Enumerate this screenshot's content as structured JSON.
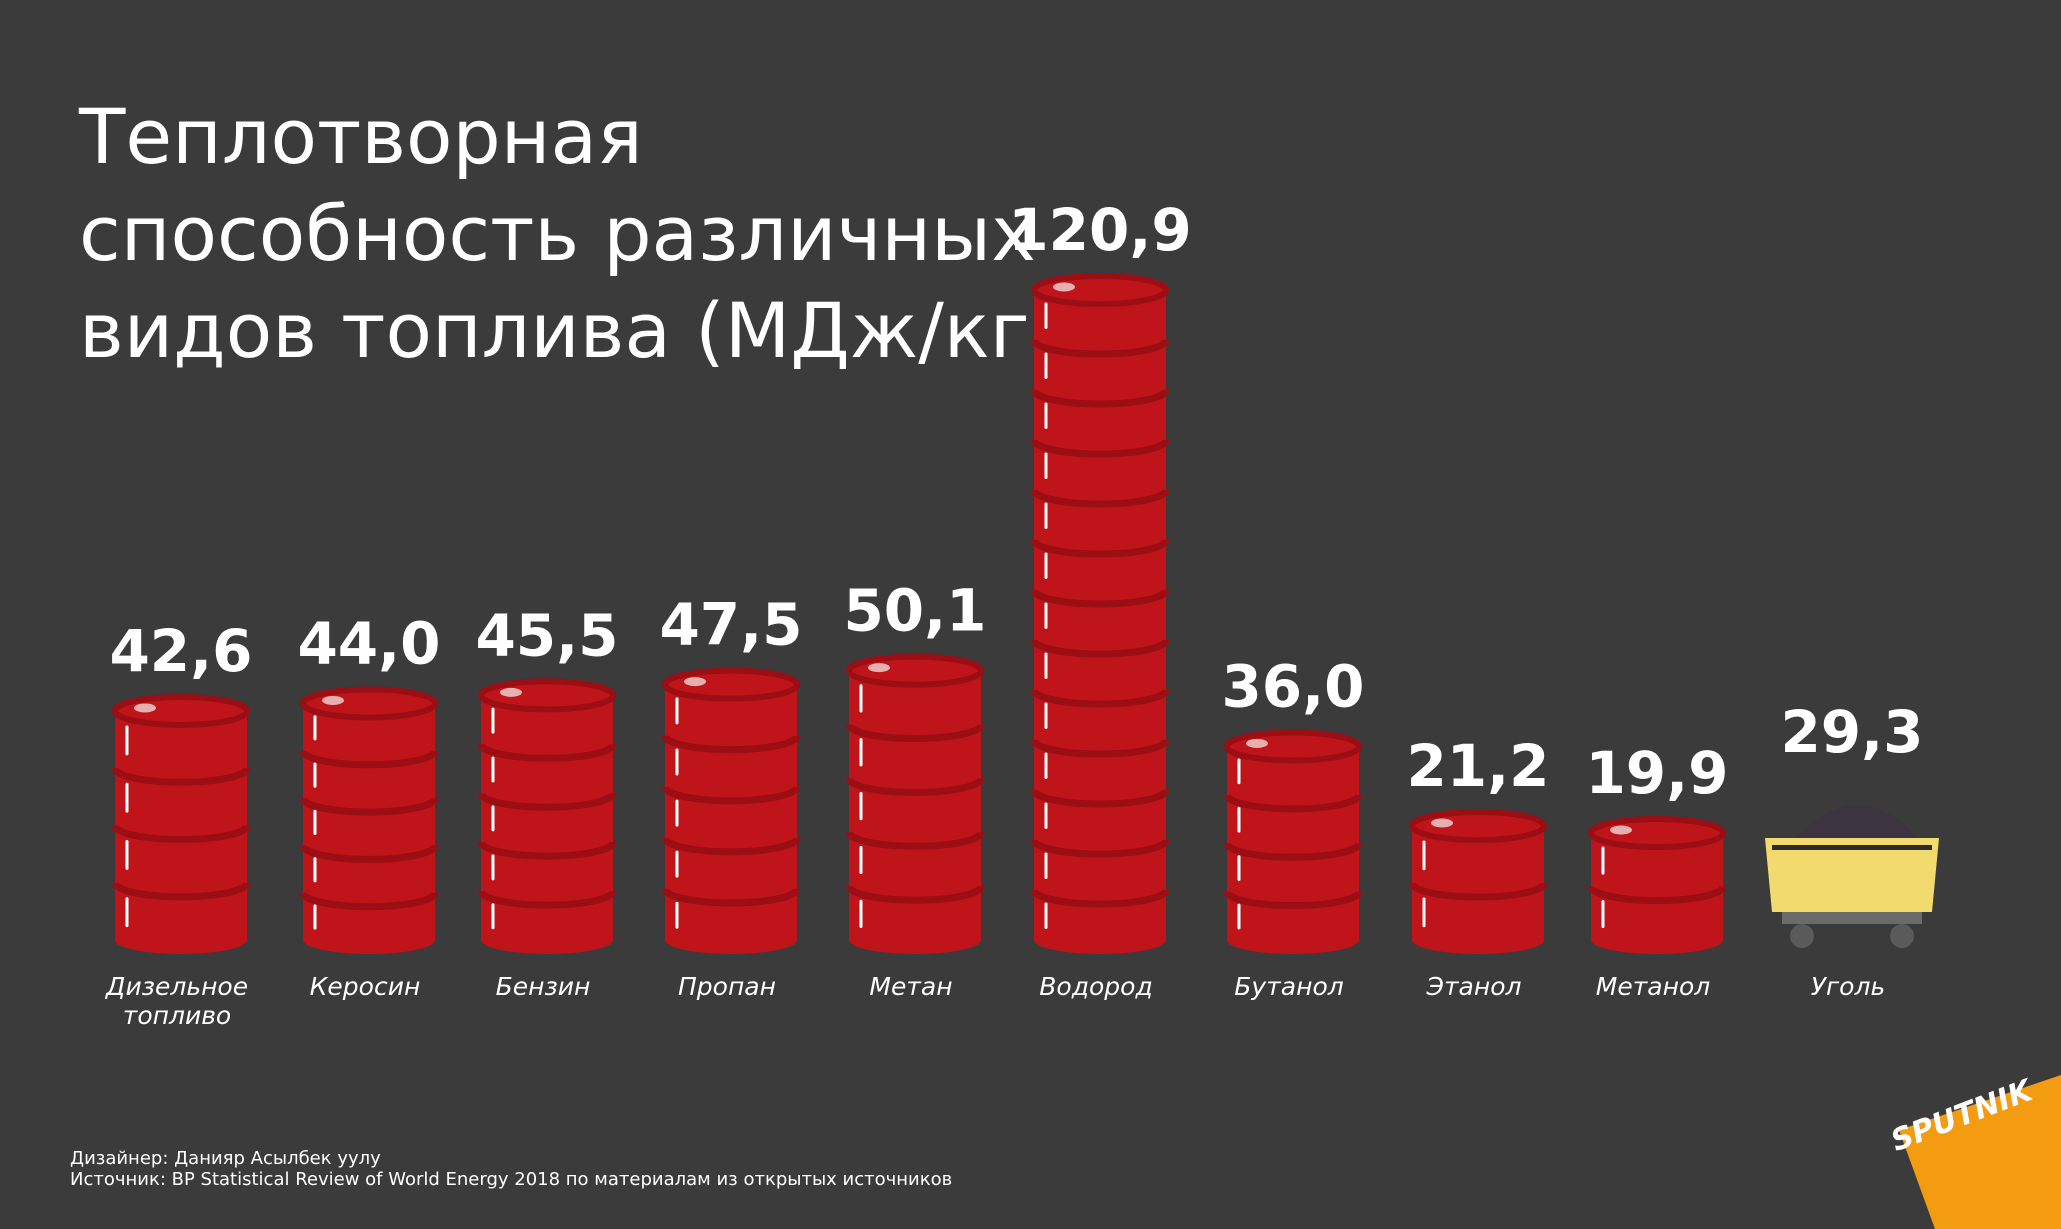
{
  "title_lines": [
    "Теплотворная",
    "способность различных",
    "видов топлива (МДж/кг)"
  ],
  "chart_data": {
    "type": "bar",
    "title": "Теплотворная способность различных видов топлива (МДж/кг)",
    "categories": [
      "Дизельное топливо",
      "Керосин",
      "Бензин",
      "Пропан",
      "Метан",
      "Водород",
      "Бутанол",
      "Этанол",
      "Метанол",
      "Уголь"
    ],
    "category_lines": [
      [
        "Дизельное",
        "топливо"
      ],
      [
        "Керосин"
      ],
      [
        "Бензин"
      ],
      [
        "Пропан"
      ],
      [
        "Метан"
      ],
      [
        "Водород"
      ],
      [
        "Бутанол"
      ],
      [
        "Этанол"
      ],
      [
        "Метанол"
      ],
      [
        "Уголь"
      ]
    ],
    "values": [
      42.6,
      44.0,
      45.5,
      47.5,
      50.1,
      120.9,
      36.0,
      21.2,
      19.9,
      29.3
    ],
    "value_labels": [
      "42,6",
      "44,0",
      "45,5",
      "47,5",
      "50,1",
      "120,9",
      "36,0",
      "21,2",
      "19,9",
      "29,3"
    ],
    "mark_style": [
      "barrel",
      "barrel",
      "barrel",
      "barrel",
      "barrel",
      "barrel",
      "barrel",
      "barrel",
      "barrel",
      "coal-cart"
    ],
    "xlabel": "",
    "ylabel": "",
    "grid": false,
    "legend": "none"
  },
  "colors": {
    "background": "#3b3b3c",
    "barrel": "#c0141b",
    "barrel_rim": "#9b0e14",
    "cart": "#f2da6e",
    "coal": "#3c3540",
    "logo": "#f39c12",
    "text": "#ffffff"
  },
  "icons": [
    "oil-barrel-icon",
    "coal-cart-icon",
    "sputnik-logo"
  ],
  "footer": {
    "designer": "Дизайнер: Данияр Асылбек уулу",
    "source": "Источник: BP Statistical Review of World Energy 2018 по материалам из открытых источников"
  },
  "logo_text": "SPUTNIK"
}
